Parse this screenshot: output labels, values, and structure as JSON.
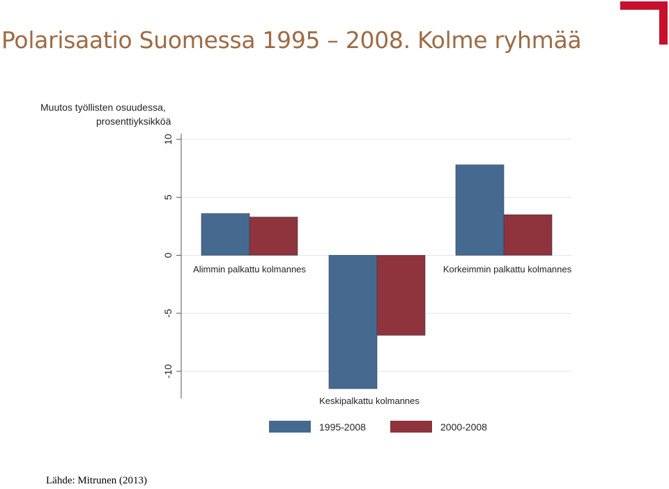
{
  "slide": {
    "title": "Polarisaatio Suomessa 1995 – 2008. Kolme ryhmää",
    "source": "Lähde: Mitrunen (2013)",
    "logo": "red-corner-bracket-logo",
    "title_color": "#9d6b45"
  },
  "chart_data": {
    "type": "bar",
    "ylabel_lines": [
      "Muutos työllisten osuudessa,",
      "prosenttiyksikköä"
    ],
    "ylim": [
      -12,
      10
    ],
    "yticks": [
      10,
      5,
      0,
      -5,
      -10
    ],
    "ytick_labels": [
      "10",
      "5",
      "0",
      "-5",
      "-10"
    ],
    "grid": true,
    "legend_position": "bottom",
    "categories": [
      "Alimmin palkattu kolmannes",
      "Keskipalkattu kolmannes",
      "Korkeimmin palkattu kolmannes"
    ],
    "series": [
      {
        "name": "1995-2008",
        "color": "#466a8f",
        "values": [
          3.6,
          -11.5,
          7.8
        ]
      },
      {
        "name": "2000-2008",
        "color": "#8f333c",
        "values": [
          3.3,
          -6.9,
          3.5
        ]
      }
    ]
  }
}
